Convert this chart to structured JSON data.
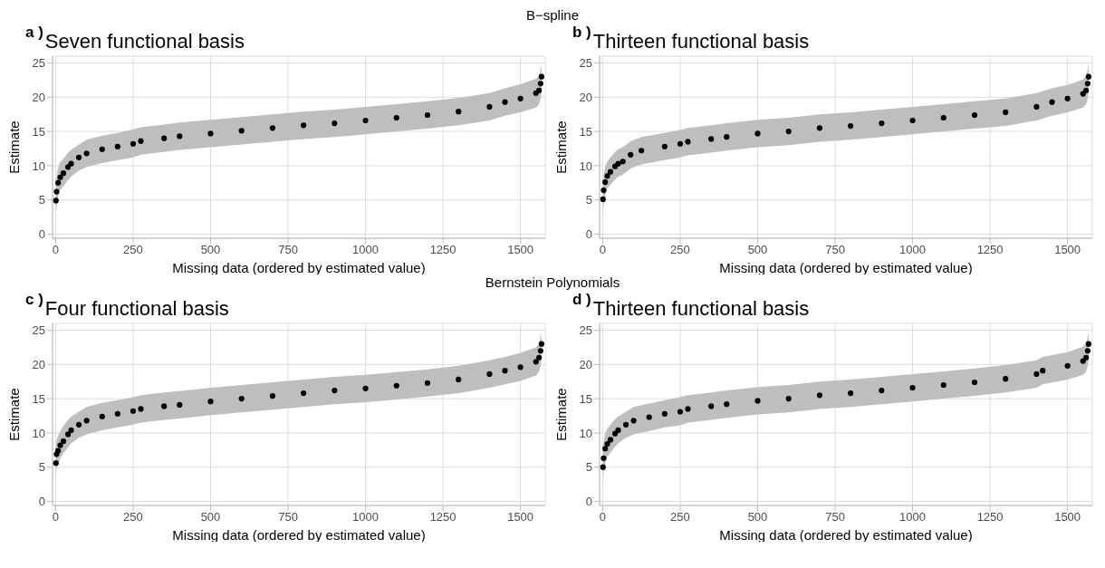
{
  "chart_data": [
    {
      "type": "scatter",
      "title": "Seven functional basis",
      "annotations": [
        "a )",
        "B−spline"
      ],
      "xlabel": "Missing data (ordered by estimated value)",
      "ylabel": "Estimate",
      "xlim": [
        -10,
        1580
      ],
      "ylim": [
        -0.6,
        26
      ],
      "xticks": [
        0,
        250,
        500,
        750,
        1000,
        1250,
        1500
      ],
      "yticks": [
        0,
        5,
        10,
        15,
        20,
        25
      ],
      "grid": true,
      "marker": "circle",
      "x": [
        1,
        3,
        8,
        15,
        25,
        40,
        50,
        75,
        100,
        150,
        200,
        250,
        275,
        350,
        400,
        500,
        600,
        700,
        800,
        900,
        1000,
        1100,
        1200,
        1300,
        1400,
        1450,
        1500,
        1550,
        1560,
        1565,
        1568
      ],
      "series": [
        {
          "color": "#000000",
          "values": [
            4.9,
            6.2,
            7.5,
            8.3,
            8.9,
            9.8,
            10.3,
            11.2,
            11.8,
            12.4,
            12.8,
            13.2,
            13.6,
            14.0,
            14.3,
            14.7,
            15.1,
            15.5,
            15.9,
            16.2,
            16.6,
            17.0,
            17.4,
            17.9,
            18.6,
            19.3,
            19.8,
            20.6,
            21.0,
            22.0,
            23.0
          ],
          "lower": [
            2.8,
            4.0,
            5.5,
            6.5,
            7.0,
            7.9,
            8.4,
            9.3,
            9.8,
            10.4,
            10.8,
            11.2,
            11.6,
            12.0,
            12.3,
            12.7,
            13.1,
            13.5,
            13.9,
            14.2,
            14.6,
            15.0,
            15.4,
            15.9,
            16.6,
            17.3,
            17.8,
            18.5,
            19.0,
            19.8,
            21.0
          ],
          "upper": [
            7.0,
            8.5,
            9.8,
            10.5,
            11.0,
            11.9,
            12.3,
            13.1,
            13.8,
            14.4,
            14.8,
            15.3,
            15.6,
            16.0,
            16.3,
            16.7,
            17.1,
            17.5,
            17.9,
            18.2,
            18.6,
            19.0,
            19.4,
            19.9,
            20.6,
            21.3,
            21.9,
            22.7,
            23.2,
            24.0,
            24.5
          ]
        }
      ]
    },
    {
      "type": "scatter",
      "title": "Thirteen functional basis",
      "annotations": [
        "b )"
      ],
      "xlabel": "Missing data (ordered by estimated value)",
      "ylabel": "Estimate",
      "xlim": [
        -10,
        1580
      ],
      "ylim": [
        -0.6,
        26
      ],
      "xticks": [
        0,
        250,
        500,
        750,
        1000,
        1250,
        1500
      ],
      "yticks": [
        0,
        5,
        10,
        15,
        20,
        25
      ],
      "grid": true,
      "marker": "circle",
      "x": [
        1,
        3,
        8,
        15,
        25,
        40,
        50,
        65,
        90,
        125,
        200,
        250,
        275,
        350,
        400,
        500,
        600,
        700,
        800,
        900,
        1000,
        1100,
        1200,
        1300,
        1400,
        1450,
        1500,
        1550,
        1560,
        1565,
        1568
      ],
      "series": [
        {
          "color": "#000000",
          "values": [
            5.1,
            6.4,
            7.6,
            8.5,
            9.1,
            9.9,
            10.3,
            10.6,
            11.6,
            12.2,
            12.8,
            13.2,
            13.5,
            13.9,
            14.2,
            14.7,
            15.0,
            15.5,
            15.8,
            16.2,
            16.6,
            17.0,
            17.4,
            17.8,
            18.6,
            19.3,
            19.8,
            20.5,
            21.0,
            22.0,
            23.0
          ],
          "lower": [
            3.0,
            4.2,
            5.6,
            6.7,
            7.2,
            8.0,
            8.4,
            8.7,
            9.6,
            10.2,
            10.8,
            11.2,
            11.5,
            11.9,
            12.2,
            12.7,
            13.0,
            13.5,
            13.8,
            14.2,
            14.6,
            15.0,
            15.4,
            15.8,
            16.6,
            17.3,
            17.8,
            18.5,
            19.0,
            19.8,
            21.0
          ],
          "upper": [
            7.2,
            8.6,
            9.9,
            10.6,
            11.2,
            12.0,
            12.4,
            12.7,
            13.6,
            14.2,
            14.8,
            15.2,
            15.5,
            15.9,
            16.2,
            16.7,
            17.0,
            17.5,
            17.8,
            18.2,
            18.6,
            19.0,
            19.4,
            19.8,
            20.6,
            21.3,
            21.8,
            22.6,
            23.2,
            24.0,
            24.8
          ]
        }
      ]
    },
    {
      "type": "scatter",
      "title": "Four functional basis",
      "annotations": [
        "c )",
        "Bernstein Polynomials"
      ],
      "xlabel": "Missing data (ordered by estimated value)",
      "ylabel": "Estimate",
      "xlim": [
        -10,
        1580
      ],
      "ylim": [
        -0.6,
        26
      ],
      "xticks": [
        0,
        250,
        500,
        750,
        1000,
        1250,
        1500
      ],
      "yticks": [
        0,
        5,
        10,
        15,
        20,
        25
      ],
      "grid": true,
      "marker": "circle",
      "x": [
        1,
        3,
        8,
        15,
        25,
        40,
        50,
        75,
        100,
        150,
        200,
        250,
        275,
        350,
        400,
        500,
        600,
        700,
        800,
        900,
        1000,
        1100,
        1200,
        1300,
        1400,
        1450,
        1500,
        1550,
        1560,
        1565,
        1568
      ],
      "series": [
        {
          "color": "#000000",
          "values": [
            5.6,
            6.9,
            7.4,
            8.2,
            8.8,
            9.8,
            10.4,
            11.2,
            11.8,
            12.4,
            12.8,
            13.2,
            13.5,
            13.9,
            14.1,
            14.6,
            15.0,
            15.4,
            15.8,
            16.2,
            16.5,
            16.9,
            17.3,
            17.8,
            18.6,
            19.1,
            19.6,
            20.4,
            21.0,
            22.0,
            23.0
          ],
          "lower": [
            3.6,
            4.8,
            5.4,
            6.3,
            7.0,
            7.9,
            8.5,
            9.3,
            9.8,
            10.4,
            10.8,
            11.2,
            11.5,
            11.9,
            12.1,
            12.6,
            13.0,
            13.4,
            13.8,
            14.2,
            14.5,
            14.9,
            15.3,
            15.8,
            16.6,
            17.1,
            17.6,
            18.4,
            19.0,
            19.8,
            21.0
          ],
          "upper": [
            7.8,
            9.0,
            9.6,
            10.3,
            11.0,
            11.9,
            12.4,
            13.1,
            13.8,
            14.4,
            14.8,
            15.2,
            15.5,
            15.9,
            16.1,
            16.6,
            17.0,
            17.4,
            17.8,
            18.2,
            18.5,
            18.9,
            19.3,
            19.8,
            20.6,
            21.1,
            21.7,
            22.5,
            23.0,
            24.0,
            24.5
          ]
        }
      ]
    },
    {
      "type": "scatter",
      "title": "Thirteen functional basis",
      "annotations": [
        "d )"
      ],
      "xlabel": "Missing data (ordered by estimated value)",
      "ylabel": "Estimate",
      "xlim": [
        -10,
        1580
      ],
      "ylim": [
        -0.6,
        26
      ],
      "xticks": [
        0,
        250,
        500,
        750,
        1000,
        1250,
        1500
      ],
      "yticks": [
        0,
        5,
        10,
        15,
        20,
        25
      ],
      "grid": true,
      "marker": "circle",
      "x": [
        1,
        3,
        8,
        15,
        25,
        40,
        50,
        75,
        100,
        150,
        200,
        250,
        275,
        350,
        400,
        500,
        600,
        700,
        800,
        900,
        1000,
        1100,
        1200,
        1300,
        1400,
        1420,
        1500,
        1550,
        1560,
        1565,
        1568
      ],
      "series": [
        {
          "color": "#000000",
          "values": [
            5.0,
            6.3,
            7.7,
            8.4,
            9.0,
            9.9,
            10.4,
            11.2,
            11.8,
            12.3,
            12.8,
            13.1,
            13.5,
            13.9,
            14.2,
            14.7,
            15.0,
            15.5,
            15.8,
            16.2,
            16.6,
            17.0,
            17.4,
            17.9,
            18.6,
            19.1,
            19.8,
            20.5,
            21.0,
            22.0,
            23.0
          ],
          "lower": [
            2.9,
            4.1,
            5.6,
            6.5,
            7.1,
            8.0,
            8.5,
            9.3,
            9.8,
            10.3,
            10.8,
            11.1,
            11.5,
            11.9,
            12.2,
            12.7,
            13.0,
            13.5,
            13.8,
            14.2,
            14.6,
            15.0,
            15.4,
            15.9,
            16.6,
            17.1,
            17.8,
            18.5,
            19.0,
            19.8,
            21.0
          ],
          "upper": [
            7.1,
            8.6,
            10.0,
            10.6,
            11.2,
            12.0,
            12.4,
            13.1,
            13.8,
            14.3,
            14.8,
            15.2,
            15.5,
            15.9,
            16.2,
            16.7,
            17.0,
            17.5,
            17.8,
            18.2,
            18.6,
            19.0,
            19.4,
            19.9,
            20.6,
            21.1,
            21.8,
            22.6,
            23.2,
            24.0,
            24.8
          ]
        }
      ]
    }
  ]
}
